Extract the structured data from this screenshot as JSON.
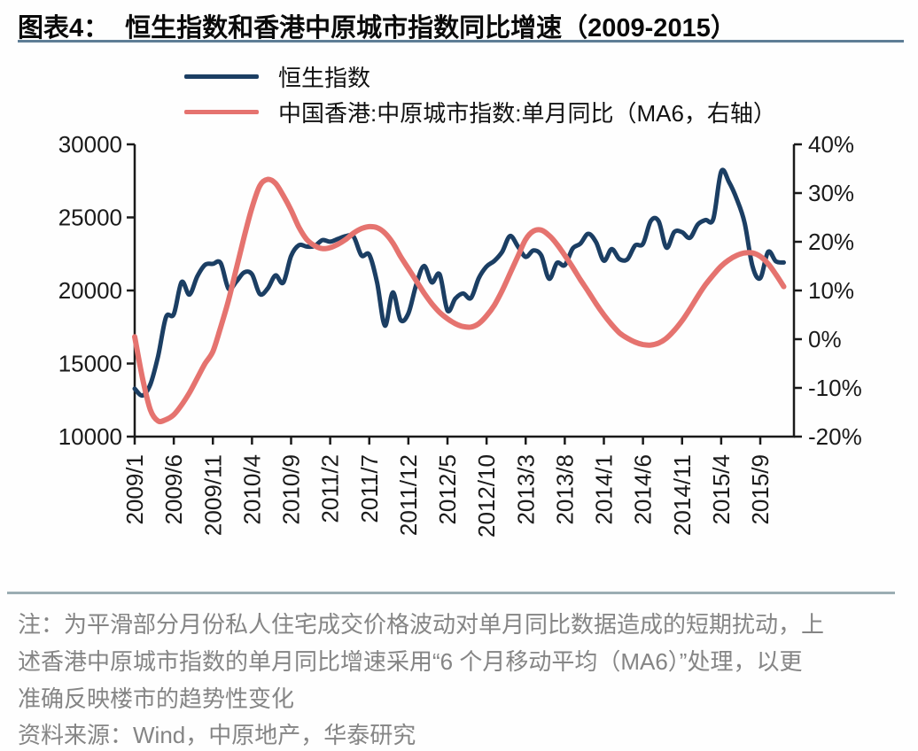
{
  "page": {
    "title_prefix": "图表4：",
    "title": "恒生指数和香港中原城市指数同比增速（2009-2015）",
    "notes": [
      "注：为平滑部分月份私人住宅成交价格波动对单月同比数据造成的短期扰动，上",
      "述香港中原城市指数的单月同比增速采用“6 个月移动平均（MA6）”处理，以更",
      "准确反映楼市的趋势性变化"
    ],
    "source": "资料来源：Wind，中原地产，华泰研究"
  },
  "chart_data": {
    "type": "line",
    "title": "恒生指数和香港中原城市指数同比增速（2009-2015）",
    "x_start": "2009/1",
    "x_end": "2015/12",
    "x_unit": "month",
    "x_tick_step_months": 5,
    "x_tick_labels": [
      "2009/1",
      "2009/6",
      "2009/11",
      "2010/4",
      "2010/9",
      "2011/2",
      "2011/7",
      "2011/12",
      "2012/5",
      "2012/10",
      "2013/3",
      "2013/8",
      "2014/1",
      "2014/6",
      "2014/11",
      "2015/4",
      "2015/9"
    ],
    "left_axis": {
      "range": [
        10000,
        30000
      ],
      "ticks": [
        30000,
        25000,
        20000,
        15000,
        10000
      ],
      "tick_labels": [
        "30000",
        "25000",
        "20000",
        "15000",
        "10000"
      ]
    },
    "right_axis": {
      "range": [
        -20,
        40
      ],
      "ticks": [
        40,
        30,
        20,
        10,
        0,
        -10,
        -20
      ],
      "tick_labels": [
        "40%",
        "30%",
        "20%",
        "10%",
        "0%",
        "-10%",
        "-20%"
      ]
    },
    "grid": false,
    "legend_position": "top-left",
    "series": [
      {
        "name": "恒生指数",
        "axis": "left",
        "color": "#1b3e63",
        "stroke_width": 5,
        "values": [
          13278,
          12812,
          13576,
          15521,
          18171,
          18378,
          20573,
          19724,
          20955,
          21753,
          21822,
          21873,
          20122,
          20609,
          21239,
          21109,
          19765,
          20129,
          21030,
          20537,
          22358,
          23096,
          23007,
          23035,
          23447,
          23338,
          23528,
          23721,
          23684,
          22398,
          22440,
          20535,
          17592,
          19865,
          17989,
          18434,
          20390,
          21680,
          20556,
          21094,
          18629,
          19441,
          19796,
          19483,
          20840,
          21641,
          22030,
          22657,
          23729,
          23020,
          22300,
          22737,
          22392,
          20803,
          21883,
          21731,
          22859,
          23206,
          23881,
          23306,
          22035,
          22837,
          22151,
          22134,
          23082,
          23191,
          24757,
          24742,
          22933,
          23998,
          23987,
          23605,
          24507,
          24823,
          24901,
          28133,
          27424,
          26250,
          24636,
          21671,
          20846,
          22640,
          21996,
          21914
        ]
      },
      {
        "name": "中国香港:中原城市指数:单月同比（MA6，右轴）",
        "axis": "right",
        "color": "#e5736f",
        "stroke_width": 6,
        "values": [
          0.5,
          -8,
          -14.5,
          -16.8,
          -16.5,
          -15.5,
          -13.5,
          -11,
          -8,
          -5,
          -2.5,
          2.5,
          8,
          14.5,
          21,
          27,
          31.5,
          32.8,
          32,
          29.5,
          26.5,
          23,
          20.5,
          19.2,
          18.6,
          18.8,
          19.5,
          20.5,
          21.8,
          22.7,
          23.1,
          22.9,
          21.8,
          19.8,
          17,
          14.5,
          12,
          9.5,
          7.3,
          5.5,
          4.2,
          3.2,
          2.6,
          2.5,
          3.2,
          4.8,
          7,
          10,
          13.5,
          17,
          20.5,
          22.2,
          22.4,
          21.3,
          19.5,
          17.2,
          14.8,
          12.2,
          9.8,
          7.3,
          5,
          3,
          1.3,
          0.2,
          -0.6,
          -1.1,
          -1.2,
          -0.8,
          0.2,
          1.8,
          3.8,
          6.2,
          8.8,
          11.2,
          13.2,
          15,
          16.3,
          17.2,
          17.7,
          17.7,
          17,
          15.5,
          13.3,
          10.8
        ]
      }
    ]
  }
}
